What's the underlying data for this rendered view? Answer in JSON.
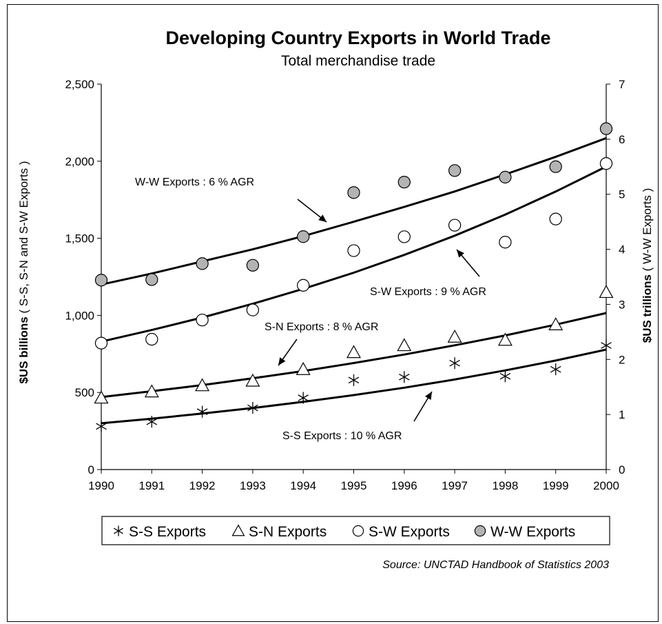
{
  "chart_data": {
    "type": "scatter",
    "title": "Developing Country Exports in World Trade",
    "subtitle": "Total merchandise trade",
    "ylabel_left": {
      "bold": "$US billions",
      "rest": " ( S-S, S-N and S-W Exports )"
    },
    "ylabel_right": {
      "bold": "$US trillions",
      "rest": " ( W-W Exports )"
    },
    "x": [
      1990,
      1991,
      1992,
      1993,
      1994,
      1995,
      1996,
      1997,
      1998,
      1999,
      2000
    ],
    "x_ticks": [
      "1990",
      "1991",
      "1992",
      "1993",
      "1994",
      "1995",
      "1996",
      "1997",
      "1998",
      "1999",
      "2000"
    ],
    "ylim_left": [
      0,
      2500
    ],
    "ylim_right": [
      0,
      7
    ],
    "y_ticks_left": [
      "0",
      "500",
      "1,000",
      "1,500",
      "2,000",
      "2,500"
    ],
    "y_ticks_right": [
      "0",
      "1",
      "2",
      "3",
      "4",
      "5",
      "6",
      "7"
    ],
    "series": [
      {
        "name": "S-S Exports",
        "marker": "asterisk",
        "axis": "left",
        "values": [
          280,
          310,
          375,
          400,
          465,
          580,
          600,
          690,
          605,
          650,
          805
        ],
        "trend": [
          300,
          330,
          363,
          399,
          439,
          483,
          531,
          584,
          643,
          707,
          778
        ]
      },
      {
        "name": "S-N Exports",
        "marker": "triangle",
        "axis": "left",
        "values": [
          465,
          505,
          545,
          575,
          650,
          760,
          805,
          860,
          840,
          940,
          1150
        ],
        "trend": [
          470,
          508,
          548,
          592,
          639,
          691,
          746,
          806,
          870,
          940,
          1015
        ]
      },
      {
        "name": "S-W Exports",
        "marker": "circle-open",
        "axis": "left",
        "values": [
          820,
          845,
          970,
          1035,
          1195,
          1420,
          1510,
          1585,
          1475,
          1625,
          1985
        ],
        "trend": [
          830,
          905,
          986,
          1075,
          1172,
          1277,
          1392,
          1517,
          1654,
          1803,
          1965
        ]
      },
      {
        "name": "W-W Exports",
        "marker": "circle-filled",
        "axis": "right",
        "values": [
          3.44,
          3.45,
          3.74,
          3.71,
          4.23,
          5.03,
          5.22,
          5.43,
          5.31,
          5.5,
          6.19
        ],
        "trend": [
          3.36,
          3.56,
          3.78,
          4.0,
          4.24,
          4.5,
          4.77,
          5.05,
          5.36,
          5.68,
          6.02
        ]
      }
    ],
    "annotations": [
      "W-W Exports : 6 % AGR",
      "S-W Exports : 9 % AGR",
      "S-N Exports : 8 % AGR",
      "S-S Exports : 10 % AGR"
    ],
    "legend": [
      "S-S Exports",
      "S-N Exports",
      "S-W Exports",
      "W-W Exports"
    ],
    "legend_position": "bottom",
    "source": "Source: UNCTAD Handbook of Statistics 2003",
    "grid": false,
    "colors": {
      "marker_fill_filled": "#b3b3b3",
      "ink": "#000000"
    }
  }
}
